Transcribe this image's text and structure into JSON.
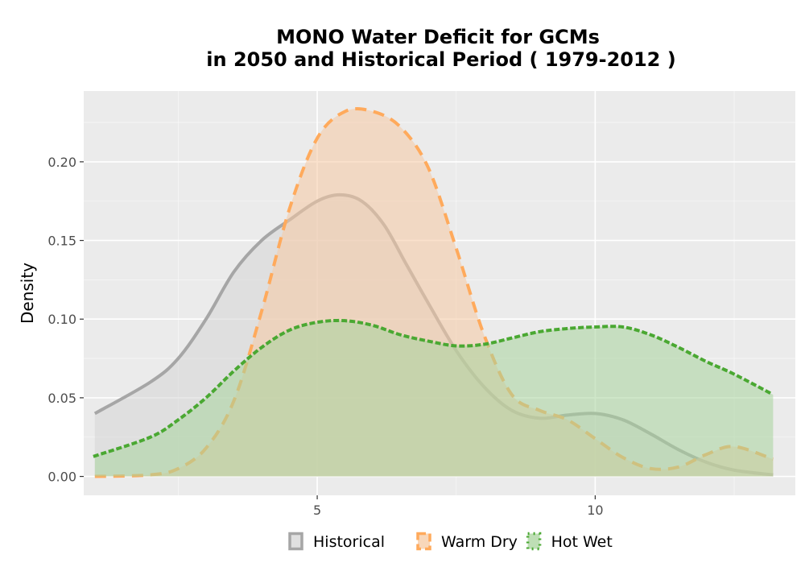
{
  "chart_data": {
    "type": "area",
    "title": "MONO  Water Deficit for GCMs",
    "subtitle": "in 2050 and Historical Period ( 1979-2012 )",
    "xlabel": "",
    "ylabel": "Density",
    "xlim": [
      0.8,
      13.6
    ],
    "ylim": [
      -0.012,
      0.245
    ],
    "x_ticks": [
      5,
      10
    ],
    "x_tick_labels": [
      "5",
      "10"
    ],
    "y_ticks": [
      0.0,
      0.05,
      0.1,
      0.15,
      0.2
    ],
    "y_tick_labels": [
      "0.00",
      "0.05",
      "0.10",
      "0.15",
      "0.20"
    ],
    "grid": true,
    "legend_position": "bottom",
    "series": [
      {
        "name": "Historical",
        "line_color": "#a6a6a6",
        "fill_color": "#d6d6d6",
        "line_style": "solid",
        "x": [
          1.0,
          2.0,
          2.5,
          3.0,
          3.5,
          4.0,
          4.5,
          5.0,
          5.4,
          5.8,
          6.2,
          6.6,
          7.0,
          7.5,
          8.0,
          8.5,
          9.0,
          9.5,
          10.0,
          10.5,
          11.0,
          11.5,
          12.0,
          12.5,
          13.2
        ],
        "y": [
          0.04,
          0.06,
          0.075,
          0.1,
          0.13,
          0.15,
          0.163,
          0.175,
          0.179,
          0.175,
          0.16,
          0.135,
          0.11,
          0.08,
          0.057,
          0.042,
          0.037,
          0.039,
          0.04,
          0.036,
          0.027,
          0.017,
          0.009,
          0.004,
          0.001
        ]
      },
      {
        "name": "Warm Dry",
        "line_color": "#ffaa5c",
        "fill_color": "#f5c9a3",
        "line_style": "dashed",
        "x": [
          1.0,
          2.0,
          2.5,
          3.0,
          3.5,
          4.0,
          4.5,
          5.0,
          5.5,
          6.0,
          6.5,
          7.0,
          7.5,
          8.0,
          8.5,
          9.0,
          9.5,
          10.0,
          10.5,
          11.0,
          11.5,
          12.0,
          12.5,
          13.2
        ],
        "y": [
          0.0,
          0.001,
          0.005,
          0.018,
          0.048,
          0.105,
          0.17,
          0.215,
          0.232,
          0.232,
          0.222,
          0.196,
          0.145,
          0.09,
          0.052,
          0.042,
          0.036,
          0.024,
          0.012,
          0.005,
          0.006,
          0.014,
          0.019,
          0.011
        ]
      },
      {
        "name": "Hot Wet",
        "line_color": "#4aa832",
        "fill_color": "#a8d39c",
        "line_style": "dotted",
        "x": [
          1.0,
          2.0,
          2.5,
          3.0,
          3.5,
          4.0,
          4.5,
          5.0,
          5.5,
          6.0,
          6.5,
          7.0,
          7.5,
          8.0,
          8.5,
          9.0,
          9.5,
          10.0,
          10.5,
          11.0,
          11.5,
          12.0,
          12.5,
          13.2
        ],
        "y": [
          0.013,
          0.025,
          0.036,
          0.05,
          0.067,
          0.082,
          0.093,
          0.098,
          0.099,
          0.096,
          0.09,
          0.086,
          0.083,
          0.084,
          0.088,
          0.092,
          0.094,
          0.095,
          0.095,
          0.09,
          0.082,
          0.073,
          0.065,
          0.052
        ]
      }
    ]
  }
}
